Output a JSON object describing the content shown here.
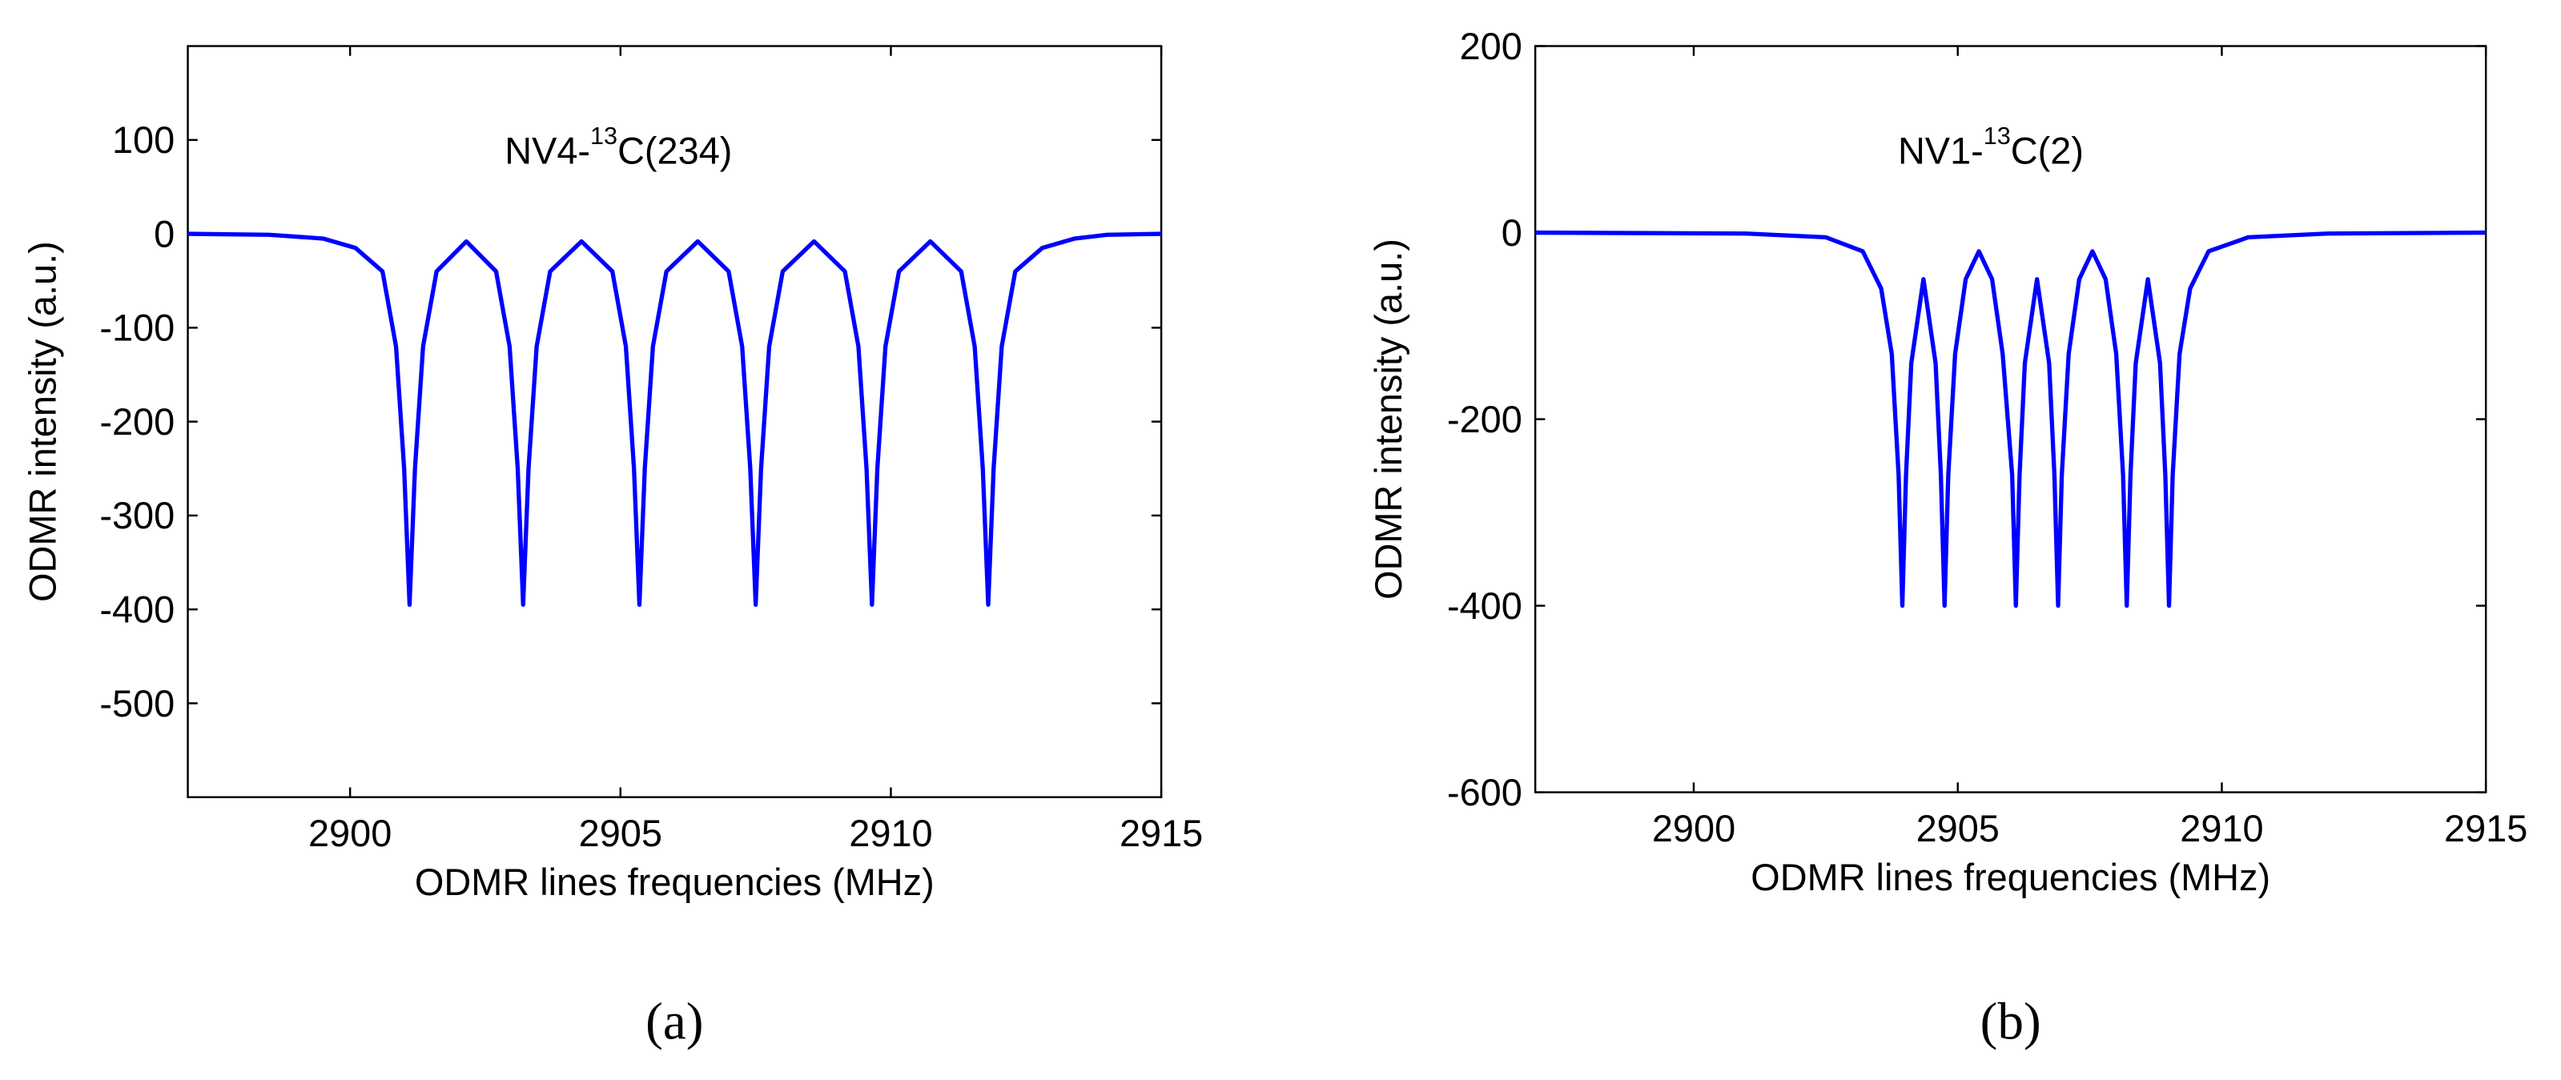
{
  "chart_data": [
    {
      "type": "line",
      "annotation": {
        "prefix": "NV4-",
        "sup": "13",
        "suffix": "C(234)"
      },
      "xlabel": "ODMR lines frequencies (MHz)",
      "ylabel": "ODMR intensity (a.u.)",
      "panel_label": "(a)",
      "xlim": [
        2897,
        2915
      ],
      "xticks": [
        2900,
        2905,
        2910,
        2915
      ],
      "ylim": [
        -600,
        200
      ],
      "yticks": [
        -500,
        -400,
        -300,
        -200,
        -100,
        0,
        100
      ],
      "x": [
        2897,
        2898.5,
        2899.5,
        2900.1,
        2900.6,
        2900.85,
        2901.0,
        2901.1,
        2901.2,
        2901.35,
        2901.6,
        2902.15,
        2902.7,
        2902.95,
        2903.1,
        2903.2,
        2903.3,
        2903.45,
        2903.7,
        2904.28,
        2904.85,
        2905.1,
        2905.25,
        2905.35,
        2905.45,
        2905.6,
        2905.85,
        2906.43,
        2907.0,
        2907.25,
        2907.4,
        2907.5,
        2907.6,
        2907.75,
        2908.0,
        2908.58,
        2909.15,
        2909.4,
        2909.55,
        2909.65,
        2909.75,
        2909.9,
        2910.15,
        2910.73,
        2911.3,
        2911.55,
        2911.7,
        2911.8,
        2911.9,
        2912.05,
        2912.3,
        2912.8,
        2913.4,
        2914,
        2915
      ],
      "series": [
        {
          "color": "#0000ff",
          "values": [
            0,
            -1,
            -5,
            -15,
            -40,
            -120,
            -250,
            -395,
            -250,
            -120,
            -40,
            -8,
            -40,
            -120,
            -250,
            -395,
            -250,
            -120,
            -40,
            -8,
            -40,
            -120,
            -250,
            -395,
            -250,
            -120,
            -40,
            -8,
            -40,
            -120,
            -250,
            -395,
            -250,
            -120,
            -40,
            -8,
            -40,
            -120,
            -250,
            -395,
            -250,
            -120,
            -40,
            -8,
            -40,
            -120,
            -250,
            -395,
            -250,
            -120,
            -40,
            -15,
            -5,
            -1,
            0
          ]
        }
      ]
    },
    {
      "type": "line",
      "annotation": {
        "prefix": "NV1-",
        "sup": "13",
        "suffix": "C(2)"
      },
      "xlabel": "ODMR lines frequencies (MHz)",
      "ylabel": "ODMR intensity (a.u.)",
      "panel_label": "(b)",
      "xlim": [
        2897,
        2915
      ],
      "xticks": [
        2900,
        2905,
        2910,
        2915
      ],
      "ylim": [
        -600,
        200
      ],
      "yticks": [
        -600,
        -400,
        -200,
        0,
        200
      ],
      "x": [
        2897,
        2901,
        2902.5,
        2903.2,
        2903.55,
        2903.75,
        2903.88,
        2903.95,
        2904.02,
        2904.12,
        2904.35,
        2904.58,
        2904.68,
        2904.75,
        2904.82,
        2904.95,
        2905.15,
        2905.4,
        2905.65,
        2905.85,
        2906.03,
        2906.1,
        2906.17,
        2906.27,
        2906.5,
        2906.73,
        2906.83,
        2906.9,
        2906.97,
        2907.1,
        2907.3,
        2907.55,
        2907.8,
        2908.0,
        2908.13,
        2908.2,
        2908.27,
        2908.37,
        2908.6,
        2908.83,
        2908.93,
        2909.0,
        2909.07,
        2909.2,
        2909.4,
        2909.75,
        2910.5,
        2912,
        2915
      ],
      "series": [
        {
          "color": "#0000ff",
          "values": [
            0,
            -1,
            -5,
            -20,
            -60,
            -130,
            -260,
            -400,
            -260,
            -140,
            -50,
            -140,
            -260,
            -400,
            -260,
            -130,
            -50,
            -20,
            -50,
            -130,
            -260,
            -400,
            -260,
            -140,
            -50,
            -140,
            -260,
            -400,
            -260,
            -130,
            -50,
            -20,
            -50,
            -130,
            -260,
            -400,
            -260,
            -140,
            -50,
            -140,
            -260,
            -400,
            -260,
            -130,
            -60,
            -20,
            -5,
            -1,
            0
          ]
        }
      ]
    }
  ]
}
